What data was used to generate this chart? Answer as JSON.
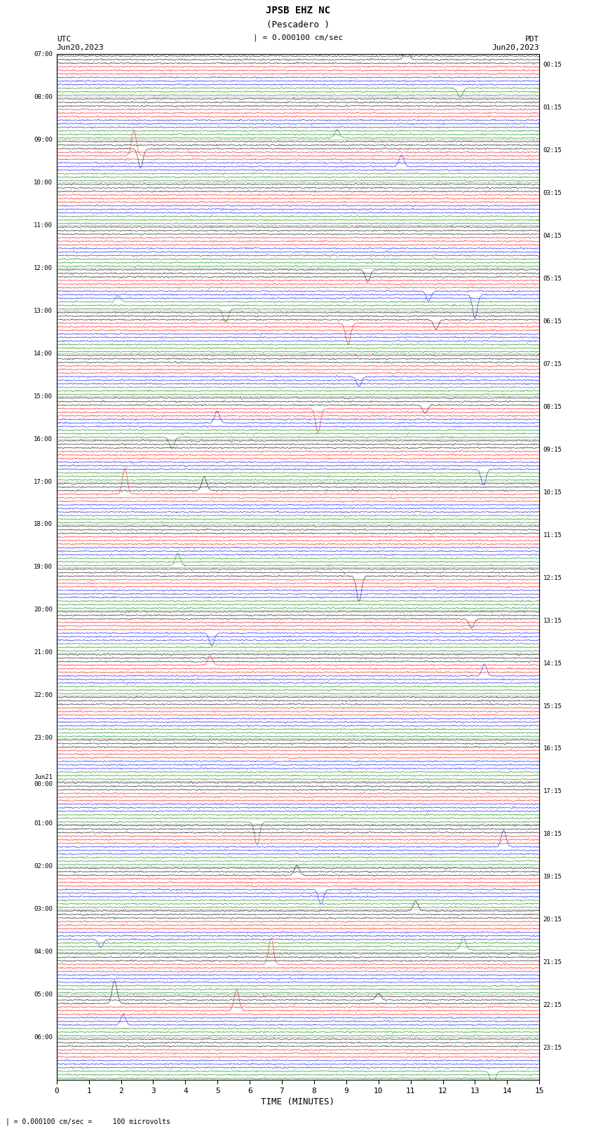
{
  "title_line1": "JPSB EHZ NC",
  "title_line2": "(Pescadero )",
  "scale_label": "| = 0.000100 cm/sec",
  "left_label_date": "UTC\nJun20,2023",
  "right_label_date": "PDT\nJun20,2023",
  "bottom_label": "TIME (MINUTES)",
  "bottom_note": "| = 0.000100 cm/sec =     100 microvolts",
  "left_hour_labels": [
    "07:00",
    "08:00",
    "09:00",
    "10:00",
    "11:00",
    "12:00",
    "13:00",
    "14:00",
    "15:00",
    "16:00",
    "17:00",
    "18:00",
    "19:00",
    "20:00",
    "21:00",
    "22:00",
    "23:00",
    "Jun21\n00:00",
    "01:00",
    "02:00",
    "03:00",
    "04:00",
    "05:00",
    "06:00"
  ],
  "right_hour_labels": [
    "00:15",
    "01:15",
    "02:15",
    "03:15",
    "04:15",
    "05:15",
    "06:15",
    "07:15",
    "08:15",
    "09:15",
    "10:15",
    "11:15",
    "12:15",
    "13:15",
    "14:15",
    "15:15",
    "16:15",
    "17:15",
    "18:15",
    "19:15",
    "20:15",
    "21:15",
    "22:15",
    "23:15"
  ],
  "colors": [
    "black",
    "red",
    "blue",
    "green"
  ],
  "bg_color": "white",
  "x_min": 0,
  "x_max": 15,
  "x_ticks": [
    0,
    1,
    2,
    3,
    4,
    5,
    6,
    7,
    8,
    9,
    10,
    11,
    12,
    13,
    14,
    15
  ],
  "fig_width": 8.5,
  "fig_height": 16.13,
  "dpi": 100,
  "rows_per_hour": 4,
  "num_hours": 23,
  "traces_per_row": 3,
  "noise_std": 0.018,
  "spike_prob": 0.12,
  "spike_amp_min": 0.25,
  "spike_amp_max": 1.2,
  "lw": 0.35
}
